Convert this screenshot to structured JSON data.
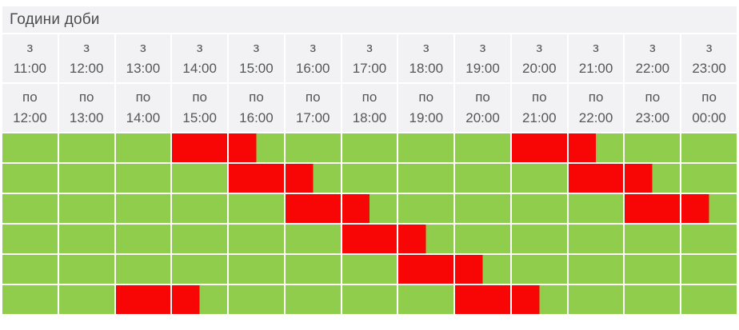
{
  "title": "Години доби",
  "header": {
    "from_label": "з",
    "to_label": "по",
    "columns": [
      {
        "from": "11:00",
        "to": "12:00"
      },
      {
        "from": "12:00",
        "to": "13:00"
      },
      {
        "from": "13:00",
        "to": "14:00"
      },
      {
        "from": "14:00",
        "to": "15:00"
      },
      {
        "from": "15:00",
        "to": "16:00"
      },
      {
        "from": "16:00",
        "to": "17:00"
      },
      {
        "from": "17:00",
        "to": "18:00"
      },
      {
        "from": "18:00",
        "to": "19:00"
      },
      {
        "from": "19:00",
        "to": "20:00"
      },
      {
        "from": "20:00",
        "to": "21:00"
      },
      {
        "from": "21:00",
        "to": "22:00"
      },
      {
        "from": "22:00",
        "to": "23:00"
      },
      {
        "from": "23:00",
        "to": "00:00"
      }
    ]
  },
  "schedule": {
    "cell_state_key": "two letters per hour cell = first/second half-hour; G=green(power on), R=red(outage)",
    "rows": [
      [
        "GG",
        "GG",
        "GG",
        "RR",
        "RG",
        "GG",
        "GG",
        "GG",
        "GG",
        "RR",
        "RG",
        "GG",
        "GG"
      ],
      [
        "GG",
        "GG",
        "GG",
        "GG",
        "RR",
        "RG",
        "GG",
        "GG",
        "GG",
        "GG",
        "RR",
        "RG",
        "GG"
      ],
      [
        "GG",
        "GG",
        "GG",
        "GG",
        "GG",
        "RR",
        "RG",
        "GG",
        "GG",
        "GG",
        "GG",
        "RR",
        "RG"
      ],
      [
        "GG",
        "GG",
        "GG",
        "GG",
        "GG",
        "GG",
        "RR",
        "RG",
        "GG",
        "GG",
        "GG",
        "GG",
        "GG"
      ],
      [
        "GG",
        "GG",
        "GG",
        "GG",
        "GG",
        "GG",
        "GG",
        "RR",
        "RG",
        "GG",
        "GG",
        "GG",
        "GG"
      ],
      [
        "GG",
        "GG",
        "RR",
        "RG",
        "GG",
        "GG",
        "GG",
        "GG",
        "RR",
        "RG",
        "GG",
        "GG",
        "GG"
      ]
    ]
  },
  "colors": {
    "page_bg": "#ffffff",
    "cell_bg": "#f2f2f4",
    "header_text": "#55565b",
    "title_text": "#4c4d52",
    "green": "#91cd4c",
    "red": "#f80505",
    "gap": "#ffffff"
  }
}
